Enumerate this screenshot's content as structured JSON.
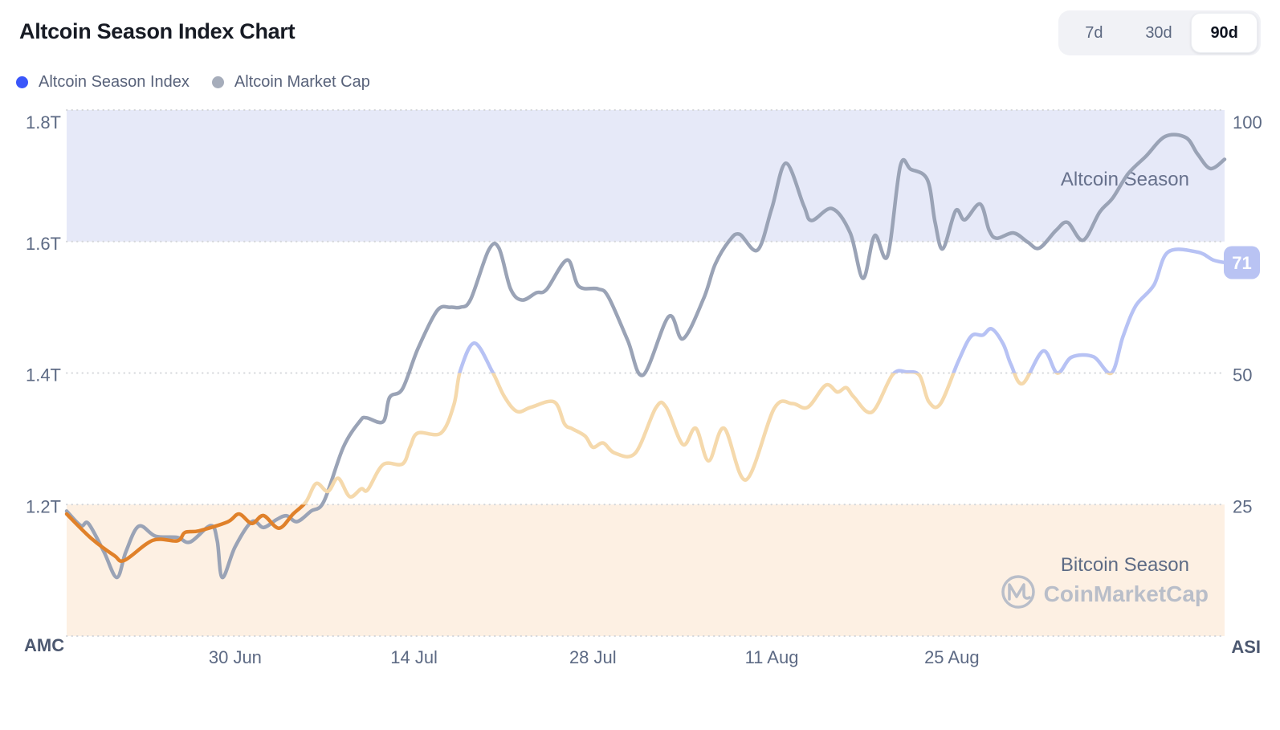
{
  "header": {
    "title": "Altcoin Season Index Chart",
    "legend": [
      {
        "label": "Altcoin Season Index",
        "color": "#3a56fa"
      },
      {
        "label": "Altcoin Market Cap",
        "color": "#a6adbb"
      }
    ],
    "range": {
      "options": [
        "7d",
        "30d",
        "90d"
      ],
      "active": "90d"
    }
  },
  "chart_data": {
    "type": "line",
    "x_range_days": [
      0,
      90
    ],
    "x_axis": {
      "ticks": [
        {
          "label": "30 Jun",
          "day": 13.1
        },
        {
          "label": "14 Jul",
          "day": 27.0
        },
        {
          "label": "28 Jul",
          "day": 40.9
        },
        {
          "label": "11 Aug",
          "day": 54.8
        },
        {
          "label": "25 Aug",
          "day": 68.8
        }
      ]
    },
    "left_axis": {
      "name": "AMC",
      "range": [
        1.0,
        1.8
      ],
      "ticks": [
        {
          "label": "1.8T",
          "value": 1.8
        },
        {
          "label": "1.6T",
          "value": 1.6
        },
        {
          "label": "1.4T",
          "value": 1.4
        },
        {
          "label": "1.2T",
          "value": 1.2
        }
      ]
    },
    "right_axis": {
      "name": "ASI",
      "range": [
        0,
        100
      ],
      "ticks": [
        {
          "label": "100",
          "value": 100
        },
        {
          "label": "50",
          "value": 50
        },
        {
          "label": "25",
          "value": 25
        }
      ],
      "current_badge": {
        "label": "71",
        "value": 71,
        "fill": "#b9c3f3",
        "text_color": "#ffffff"
      }
    },
    "zones": [
      {
        "label": "Altcoin Season",
        "band": [
          75,
          100
        ],
        "fill": "#e6e9f8",
        "label_color": "#67718c"
      },
      {
        "label": "Bitcoin Season",
        "band": [
          0,
          25
        ],
        "fill": "#fdf0e3",
        "label_color": "#5d6b85"
      }
    ],
    "grid": {
      "style": "dotted",
      "color": "#d4d6da"
    },
    "axis_label_color": "#5d6a84",
    "corner_label_color": "#4c5870",
    "series": [
      {
        "name": "Altcoin Market Cap",
        "axis": "left",
        "color": "#9aa3b6",
        "points": [
          [
            0,
            1.19
          ],
          [
            1.1,
            1.168
          ],
          [
            1.7,
            1.171
          ],
          [
            2.9,
            1.128
          ],
          [
            3.9,
            1.089
          ],
          [
            4.6,
            1.128
          ],
          [
            5.6,
            1.167
          ],
          [
            6.9,
            1.152
          ],
          [
            8.6,
            1.15
          ],
          [
            9.6,
            1.143
          ],
          [
            11.2,
            1.168
          ],
          [
            11.7,
            1.145
          ],
          [
            12.1,
            1.089
          ],
          [
            13.1,
            1.136
          ],
          [
            14.4,
            1.174
          ],
          [
            15.3,
            1.165
          ],
          [
            16.3,
            1.177
          ],
          [
            17.1,
            1.183
          ],
          [
            17.9,
            1.174
          ],
          [
            19,
            1.19
          ],
          [
            20,
            1.205
          ],
          [
            21.5,
            1.287
          ],
          [
            22.8,
            1.327
          ],
          [
            23.3,
            1.332
          ],
          [
            24.6,
            1.326
          ],
          [
            25.1,
            1.363
          ],
          [
            26.1,
            1.376
          ],
          [
            27.3,
            1.437
          ],
          [
            28.8,
            1.495
          ],
          [
            29.8,
            1.5
          ],
          [
            30.6,
            1.5
          ],
          [
            31.4,
            1.512
          ],
          [
            32.8,
            1.587
          ],
          [
            33.6,
            1.59
          ],
          [
            34.5,
            1.528
          ],
          [
            35.4,
            1.511
          ],
          [
            36.5,
            1.522
          ],
          [
            37.3,
            1.527
          ],
          [
            38.9,
            1.572
          ],
          [
            39.8,
            1.532
          ],
          [
            41.3,
            1.528
          ],
          [
            42.1,
            1.516
          ],
          [
            43.6,
            1.45
          ],
          [
            44.8,
            1.397
          ],
          [
            46.8,
            1.486
          ],
          [
            47.9,
            1.452
          ],
          [
            49.5,
            1.513
          ],
          [
            50.4,
            1.565
          ],
          [
            51.5,
            1.601
          ],
          [
            52.3,
            1.611
          ],
          [
            53.7,
            1.587
          ],
          [
            54.8,
            1.65
          ],
          [
            55.9,
            1.719
          ],
          [
            57.3,
            1.654
          ],
          [
            57.9,
            1.632
          ],
          [
            59.5,
            1.65
          ],
          [
            60.9,
            1.613
          ],
          [
            61.9,
            1.544
          ],
          [
            62.8,
            1.609
          ],
          [
            63.8,
            1.578
          ],
          [
            64.8,
            1.715
          ],
          [
            65.6,
            1.71
          ],
          [
            66.9,
            1.694
          ],
          [
            67.5,
            1.629
          ],
          [
            68.1,
            1.589
          ],
          [
            69.1,
            1.647
          ],
          [
            69.8,
            1.633
          ],
          [
            71,
            1.657
          ],
          [
            71.7,
            1.617
          ],
          [
            72.3,
            1.605
          ],
          [
            73.6,
            1.613
          ],
          [
            74.7,
            1.599
          ],
          [
            75.6,
            1.59
          ],
          [
            76.9,
            1.617
          ],
          [
            77.8,
            1.629
          ],
          [
            79,
            1.602
          ],
          [
            80.3,
            1.645
          ],
          [
            81.3,
            1.666
          ],
          [
            82.5,
            1.703
          ],
          [
            83.9,
            1.73
          ],
          [
            85.4,
            1.76
          ],
          [
            87,
            1.758
          ],
          [
            87.9,
            1.733
          ],
          [
            88.9,
            1.711
          ],
          [
            90,
            1.725
          ]
        ]
      },
      {
        "name": "Altcoin Season Index",
        "axis": "right",
        "color_by_value": [
          {
            "max": 25,
            "color": "#e0812a"
          },
          {
            "max": 50,
            "color": "#f5d9ac"
          },
          {
            "max": 101,
            "color": "#b7c2f4"
          }
        ],
        "points": [
          [
            0,
            23.2
          ],
          [
            1.9,
            18.6
          ],
          [
            3.7,
            15.3
          ],
          [
            4.5,
            14.4
          ],
          [
            6.7,
            18.2
          ],
          [
            8.6,
            18.1
          ],
          [
            9.2,
            19.7
          ],
          [
            10.3,
            20.0
          ],
          [
            12.5,
            21.7
          ],
          [
            13.4,
            23.2
          ],
          [
            14.4,
            21.4
          ],
          [
            15.3,
            22.9
          ],
          [
            16.5,
            20.5
          ],
          [
            17.6,
            23.2
          ],
          [
            18.6,
            25.5
          ],
          [
            19.4,
            29.0
          ],
          [
            20.3,
            27.5
          ],
          [
            21.1,
            30.0
          ],
          [
            22,
            26.5
          ],
          [
            22.9,
            28.0
          ],
          [
            23.4,
            27.8
          ],
          [
            24.6,
            32.6
          ],
          [
            26.1,
            32.7
          ],
          [
            26.7,
            36.0
          ],
          [
            27.3,
            38.6
          ],
          [
            29.1,
            38.6
          ],
          [
            30.1,
            44.0
          ],
          [
            30.6,
            50.5
          ],
          [
            31.7,
            55.7
          ],
          [
            33.1,
            50.2
          ],
          [
            34,
            45.6
          ],
          [
            35,
            42.7
          ],
          [
            36.1,
            43.5
          ],
          [
            37.9,
            44.5
          ],
          [
            38.7,
            40.3
          ],
          [
            39.3,
            39.4
          ],
          [
            40.3,
            38.0
          ],
          [
            40.9,
            35.9
          ],
          [
            41.7,
            36.7
          ],
          [
            42.6,
            34.8
          ],
          [
            44.2,
            34.8
          ],
          [
            45.8,
            43.4
          ],
          [
            46.6,
            43.5
          ],
          [
            47.9,
            36.4
          ],
          [
            48.9,
            39.5
          ],
          [
            49.9,
            33.3
          ],
          [
            51.1,
            39.5
          ],
          [
            52.8,
            29.7
          ],
          [
            55,
            43.3
          ],
          [
            56.4,
            44.2
          ],
          [
            57.6,
            43.5
          ],
          [
            59,
            47.7
          ],
          [
            59.9,
            46.4
          ],
          [
            60.6,
            47.2
          ],
          [
            61.2,
            45.4
          ],
          [
            62.6,
            42.6
          ],
          [
            64.2,
            49.7
          ],
          [
            65.3,
            50.2
          ],
          [
            66.3,
            49.5
          ],
          [
            67,
            44.6
          ],
          [
            67.9,
            44.1
          ],
          [
            69.3,
            52.2
          ],
          [
            70.3,
            57.0
          ],
          [
            71.2,
            57.2
          ],
          [
            71.9,
            58.4
          ],
          [
            72.8,
            55.5
          ],
          [
            73.4,
            51.6
          ],
          [
            74.3,
            48.0
          ],
          [
            75.9,
            54.2
          ],
          [
            77,
            50.0
          ],
          [
            78.1,
            53.0
          ],
          [
            79.8,
            53.1
          ],
          [
            81.2,
            50.0
          ],
          [
            82.1,
            56.9
          ],
          [
            83.1,
            62.8
          ],
          [
            84.5,
            66.7
          ],
          [
            85.6,
            73.0
          ],
          [
            87.9,
            73.0
          ],
          [
            89.1,
            71.5
          ],
          [
            90,
            71.0
          ]
        ]
      }
    ]
  },
  "watermark": {
    "text": "CoinMarketCap",
    "color": "#b9bec9"
  }
}
